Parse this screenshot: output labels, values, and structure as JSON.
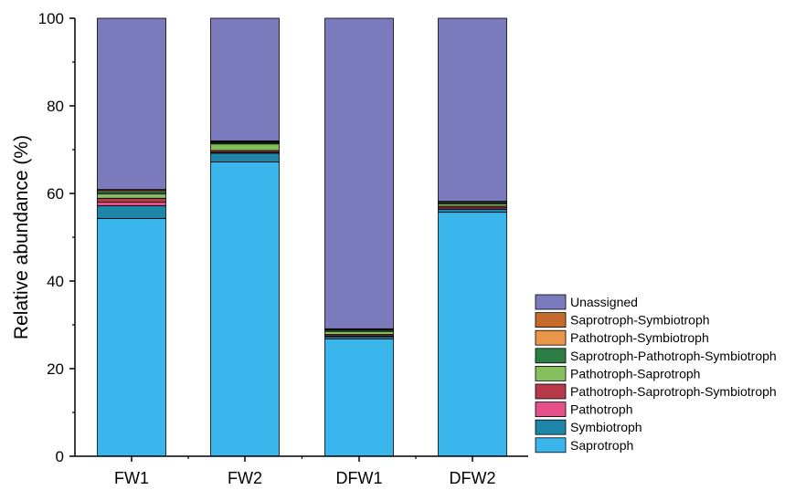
{
  "chart_data": {
    "type": "bar",
    "stacked": true,
    "categories": [
      "FW1",
      "FW2",
      "DFW1",
      "DFW2"
    ],
    "ylabel": "Relative abundance (%)",
    "xlabel": "",
    "ylim": [
      0,
      100
    ],
    "yticks": [
      "0",
      "20",
      "40",
      "60",
      "80",
      "100"
    ],
    "grid": false,
    "legend_position": "bottom-right",
    "series": [
      {
        "name": "Saprotroph",
        "color": "#3BB6EC",
        "values": [
          54.3,
          67.2,
          26.8,
          55.7
        ]
      },
      {
        "name": "Symbiotroph",
        "color": "#1E86A8",
        "values": [
          2.9,
          2.0,
          0.5,
          0.7
        ]
      },
      {
        "name": "Pathotroph",
        "color": "#E4508A",
        "values": [
          0.8,
          0.2,
          0.2,
          0.3
        ]
      },
      {
        "name": "Pathotroph-Saprotroph-Symbiotroph",
        "color": "#B83A4A",
        "values": [
          0.9,
          0.4,
          0.3,
          0.4
        ]
      },
      {
        "name": "Pathotroph-Saprotroph",
        "color": "#86BF5E",
        "values": [
          1.0,
          1.5,
          0.7,
          0.5
        ]
      },
      {
        "name": "Saprotroph-Pathotroph-Symbiotroph",
        "color": "#2E7D45",
        "values": [
          0.5,
          0.3,
          0.3,
          0.3
        ]
      },
      {
        "name": "Pathotroph-Symbiotroph",
        "color": "#E8964A",
        "values": [
          0.3,
          0.2,
          0.2,
          0.2
        ]
      },
      {
        "name": "Saprotroph-Symbiotroph",
        "color": "#C56A2D",
        "values": [
          0.2,
          0.2,
          0.1,
          0.1
        ]
      },
      {
        "name": "Unassigned",
        "color": "#7A7ABC",
        "values": [
          39.1,
          28.0,
          70.9,
          41.8
        ]
      }
    ]
  }
}
